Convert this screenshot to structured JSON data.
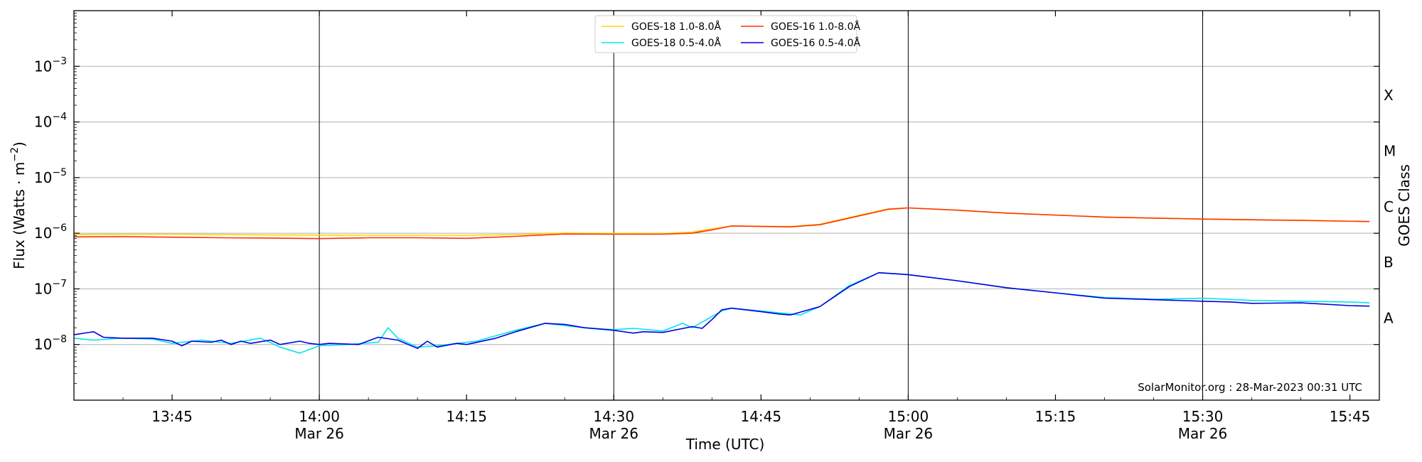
{
  "chart_data": {
    "type": "line",
    "title": "",
    "xlabel": "Time (UTC)",
    "ylabel_main": "Flux (Watts · m",
    "ylabel_sup": "−2",
    "ylabel_close": ")",
    "ylabel_right": "GOES Class",
    "y_scale": "log",
    "ylim": [
      1e-09,
      0.01
    ],
    "xlim": [
      "13:35",
      "15:48"
    ],
    "grid": "horizontal",
    "legend_position": "top-center",
    "watermark": "SolarMonitor.org : 28-Mar-2023 00:31 UTC",
    "yticks": [
      {
        "exp": -8,
        "base": "10",
        "sup": "−8"
      },
      {
        "exp": -7,
        "base": "10",
        "sup": "−7"
      },
      {
        "exp": -6,
        "base": "10",
        "sup": "−6"
      },
      {
        "exp": -5,
        "base": "10",
        "sup": "−5"
      },
      {
        "exp": -4,
        "base": "10",
        "sup": "−4"
      },
      {
        "exp": -3,
        "base": "10",
        "sup": "−3"
      }
    ],
    "xticks": [
      {
        "time": "13:45",
        "label": "13:45",
        "sub": ""
      },
      {
        "time": "14:00",
        "label": "14:00",
        "sub": "Mar 26"
      },
      {
        "time": "14:15",
        "label": "14:15",
        "sub": ""
      },
      {
        "time": "14:30",
        "label": "14:30",
        "sub": "Mar 26"
      },
      {
        "time": "14:45",
        "label": "14:45",
        "sub": ""
      },
      {
        "time": "15:00",
        "label": "15:00",
        "sub": "Mar 26"
      },
      {
        "time": "15:15",
        "label": "15:15",
        "sub": ""
      },
      {
        "time": "15:30",
        "label": "15:30",
        "sub": "Mar 26"
      },
      {
        "time": "15:45",
        "label": "15:45",
        "sub": ""
      }
    ],
    "vlines": [
      "14:00",
      "14:30",
      "15:00",
      "15:30"
    ],
    "classes": [
      {
        "label": "X",
        "value": 0.0003
      },
      {
        "label": "M",
        "value": 3e-05
      },
      {
        "label": "C",
        "value": 3e-06
      },
      {
        "label": "B",
        "value": 3e-07
      },
      {
        "label": "A",
        "value": 3e-08
      }
    ],
    "series": [
      {
        "name": "GOES-18 1.0-8.0Å",
        "color": "#ffd700",
        "points": [
          [
            "13:35",
            9.5e-07
          ],
          [
            "13:45",
            9.6e-07
          ],
          [
            "13:55",
            9.3e-07
          ],
          [
            "14:05",
            9.2e-07
          ],
          [
            "14:15",
            9.2e-07
          ],
          [
            "14:20",
            9.5e-07
          ],
          [
            "14:25",
            1e-06
          ],
          [
            "14:35",
            9.9e-07
          ],
          [
            "14:38",
            1.05e-06
          ],
          [
            "14:40",
            1.2e-06
          ],
          [
            "14:42",
            1.35e-06
          ],
          [
            "14:48",
            1.32e-06
          ],
          [
            "14:51",
            1.45e-06
          ],
          [
            "14:55",
            2.1e-06
          ],
          [
            "14:58",
            2.75e-06
          ],
          [
            "15:00",
            2.85e-06
          ],
          [
            "15:05",
            2.6e-06
          ],
          [
            "15:10",
            2.3e-06
          ],
          [
            "15:20",
            1.95e-06
          ],
          [
            "15:30",
            1.8e-06
          ],
          [
            "15:40",
            1.7e-06
          ],
          [
            "15:47",
            1.62e-06
          ]
        ]
      },
      {
        "name": "GOES-18 0.5-4.0Å",
        "color": "#00e5ee",
        "points": [
          [
            "13:35",
            1.3e-08
          ],
          [
            "13:37",
            1.2e-08
          ],
          [
            "13:40",
            1.3e-08
          ],
          [
            "13:43",
            1.25e-08
          ],
          [
            "13:45",
            1.05e-08
          ],
          [
            "13:48",
            1.2e-08
          ],
          [
            "13:51",
            1.05e-08
          ],
          [
            "13:54",
            1.3e-08
          ],
          [
            "13:56",
            9e-09
          ],
          [
            "13:58",
            7e-09
          ],
          [
            "14:00",
            9.5e-09
          ],
          [
            "14:03",
            1e-08
          ],
          [
            "14:06",
            1.1e-08
          ],
          [
            "14:07",
            2e-08
          ],
          [
            "14:08",
            1.3e-08
          ],
          [
            "14:10",
            9e-09
          ],
          [
            "14:12",
            9.5e-09
          ],
          [
            "14:14",
            1.05e-08
          ],
          [
            "14:16",
            1.15e-08
          ],
          [
            "14:20",
            1.8e-08
          ],
          [
            "14:23",
            2.4e-08
          ],
          [
            "14:25",
            2.2e-08
          ],
          [
            "14:27",
            2e-08
          ],
          [
            "14:30",
            1.85e-08
          ],
          [
            "14:32",
            1.95e-08
          ],
          [
            "14:35",
            1.75e-08
          ],
          [
            "14:37",
            2.4e-08
          ],
          [
            "14:38",
            2e-08
          ],
          [
            "14:41",
            4e-08
          ],
          [
            "14:42",
            4.5e-08
          ],
          [
            "14:45",
            4e-08
          ],
          [
            "14:49",
            3.4e-08
          ],
          [
            "14:51",
            4.8e-08
          ],
          [
            "14:54",
            1.15e-07
          ],
          [
            "14:57",
            1.95e-07
          ],
          [
            "15:00",
            1.8e-07
          ],
          [
            "15:05",
            1.4e-07
          ],
          [
            "15:10",
            1.05e-07
          ],
          [
            "15:15",
            8.5e-08
          ],
          [
            "15:20",
            7e-08
          ],
          [
            "15:25",
            6.5e-08
          ],
          [
            "15:30",
            6.8e-08
          ],
          [
            "15:35",
            6.2e-08
          ],
          [
            "15:40",
            6e-08
          ],
          [
            "15:45",
            5.8e-08
          ],
          [
            "15:47",
            5.6e-08
          ]
        ]
      },
      {
        "name": "GOES-16 1.0-8.0Å",
        "color": "#ff3300",
        "points": [
          [
            "13:35",
            8.6e-07
          ],
          [
            "13:40",
            8.7e-07
          ],
          [
            "13:45",
            8.5e-07
          ],
          [
            "13:50",
            8.3e-07
          ],
          [
            "13:55",
            8.2e-07
          ],
          [
            "14:00",
            8e-07
          ],
          [
            "14:05",
            8.3e-07
          ],
          [
            "14:10",
            8.3e-07
          ],
          [
            "14:15",
            8.1e-07
          ],
          [
            "14:20",
            8.8e-07
          ],
          [
            "14:25",
            9.7e-07
          ],
          [
            "14:30",
            9.6e-07
          ],
          [
            "14:35",
            9.6e-07
          ],
          [
            "14:38",
            1e-06
          ],
          [
            "14:40",
            1.15e-06
          ],
          [
            "14:42",
            1.35e-06
          ],
          [
            "14:48",
            1.3e-06
          ],
          [
            "14:51",
            1.42e-06
          ],
          [
            "14:55",
            2.05e-06
          ],
          [
            "14:58",
            2.7e-06
          ],
          [
            "15:00",
            2.85e-06
          ],
          [
            "15:05",
            2.6e-06
          ],
          [
            "15:10",
            2.3e-06
          ],
          [
            "15:20",
            1.95e-06
          ],
          [
            "15:30",
            1.8e-06
          ],
          [
            "15:40",
            1.7e-06
          ],
          [
            "15:47",
            1.62e-06
          ]
        ]
      },
      {
        "name": "GOES-16 0.5-4.0Å",
        "color": "#0000dd",
        "points": [
          [
            "13:35",
            1.5e-08
          ],
          [
            "13:37",
            1.7e-08
          ],
          [
            "13:38",
            1.35e-08
          ],
          [
            "13:40",
            1.3e-08
          ],
          [
            "13:43",
            1.3e-08
          ],
          [
            "13:45",
            1.15e-08
          ],
          [
            "13:46",
            9.5e-09
          ],
          [
            "13:47",
            1.15e-08
          ],
          [
            "13:49",
            1.1e-08
          ],
          [
            "13:50",
            1.2e-08
          ],
          [
            "13:51",
            1e-08
          ],
          [
            "13:52",
            1.15e-08
          ],
          [
            "13:53",
            1.05e-08
          ],
          [
            "13:55",
            1.2e-08
          ],
          [
            "13:56",
            1e-08
          ],
          [
            "13:58",
            1.15e-08
          ],
          [
            "13:59",
            1.05e-08
          ],
          [
            "14:00",
            1e-08
          ],
          [
            "14:01",
            1.05e-08
          ],
          [
            "14:04",
            1e-08
          ],
          [
            "14:06",
            1.35e-08
          ],
          [
            "14:08",
            1.2e-08
          ],
          [
            "14:10",
            8.5e-09
          ],
          [
            "14:11",
            1.15e-08
          ],
          [
            "14:12",
            9e-09
          ],
          [
            "14:14",
            1.05e-08
          ],
          [
            "14:15",
            1e-08
          ],
          [
            "14:18",
            1.3e-08
          ],
          [
            "14:20",
            1.7e-08
          ],
          [
            "14:23",
            2.4e-08
          ],
          [
            "14:25",
            2.3e-08
          ],
          [
            "14:27",
            2e-08
          ],
          [
            "14:30",
            1.8e-08
          ],
          [
            "14:32",
            1.6e-08
          ],
          [
            "14:33",
            1.7e-08
          ],
          [
            "14:35",
            1.65e-08
          ],
          [
            "14:38",
            2.1e-08
          ],
          [
            "14:39",
            1.95e-08
          ],
          [
            "14:40",
            2.8e-08
          ],
          [
            "14:41",
            4.2e-08
          ],
          [
            "14:42",
            4.5e-08
          ],
          [
            "14:45",
            3.9e-08
          ],
          [
            "14:47",
            3.5e-08
          ],
          [
            "14:48",
            3.4e-08
          ],
          [
            "14:51",
            4.8e-08
          ],
          [
            "14:54",
            1.1e-07
          ],
          [
            "14:57",
            1.95e-07
          ],
          [
            "15:00",
            1.8e-07
          ],
          [
            "15:05",
            1.4e-07
          ],
          [
            "15:10",
            1.05e-07
          ],
          [
            "15:15",
            8.5e-08
          ],
          [
            "15:20",
            6.8e-08
          ],
          [
            "15:25",
            6.4e-08
          ],
          [
            "15:30",
            6e-08
          ],
          [
            "15:33",
            5.8e-08
          ],
          [
            "15:35",
            5.5e-08
          ],
          [
            "15:40",
            5.6e-08
          ],
          [
            "15:45",
            5e-08
          ],
          [
            "15:47",
            4.9e-08
          ]
        ]
      }
    ]
  }
}
